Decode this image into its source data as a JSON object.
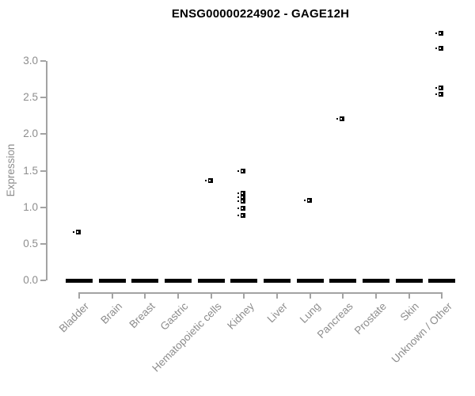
{
  "title": "ENSG00000224902 - GAGE12H",
  "colors": {
    "marker": "#000000",
    "axis_line": "#a3a3a3",
    "axis_text": "#8d8d8d",
    "title_text": "#000000",
    "background": "#ffffff"
  },
  "chart_data": {
    "type": "scatter",
    "title": "ENSG00000224902 - GAGE12H",
    "xlabel": "",
    "ylabel": "Expression",
    "ylim": [
      0.0,
      3.0
    ],
    "grid": false,
    "legend": false,
    "ytick_labels": [
      "0.0",
      "0.5",
      "1.0",
      "1.5",
      "2.0",
      "2.5",
      "3.0"
    ],
    "ytick_values": [
      0.0,
      0.5,
      1.0,
      1.5,
      2.0,
      2.5,
      3.0
    ],
    "categories": [
      "Bladder",
      "Brain",
      "Breast",
      "Gastric",
      "Hematopoietic cells",
      "Kidney",
      "Liver",
      "Lung",
      "Pancreas",
      "Prostate",
      "Skin",
      "Unknown / Other"
    ],
    "zero_cluster_at_every_category": true,
    "series": [
      {
        "name": "expression",
        "points_by_category": [
          {
            "category": "Bladder",
            "values": [
              0.66
            ]
          },
          {
            "category": "Brain",
            "values": []
          },
          {
            "category": "Breast",
            "values": []
          },
          {
            "category": "Gastric",
            "values": []
          },
          {
            "category": "Hematopoietic cells",
            "values": [
              1.36
            ]
          },
          {
            "category": "Kidney",
            "values": [
              1.5,
              1.19,
              1.14,
              1.08,
              0.99,
              0.89
            ]
          },
          {
            "category": "Liver",
            "values": []
          },
          {
            "category": "Lung",
            "values": [
              1.09
            ]
          },
          {
            "category": "Pancreas",
            "values": [
              2.21
            ]
          },
          {
            "category": "Prostate",
            "values": []
          },
          {
            "category": "Skin",
            "values": []
          },
          {
            "category": "Unknown / Other",
            "values": [
              3.38,
              3.17,
              2.63,
              2.55
            ]
          }
        ]
      }
    ]
  }
}
